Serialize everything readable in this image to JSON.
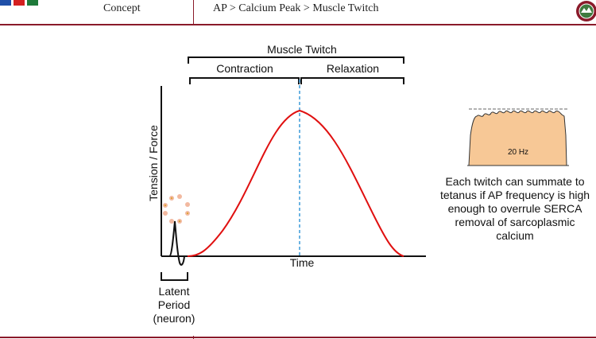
{
  "header": {
    "concept": "Concept",
    "breadcrumb": "AP > Calcium Peak > Muscle Twitch"
  },
  "diagram": {
    "bracket_muscle_twitch": "Muscle Twitch",
    "bracket_contraction": "Contraction",
    "bracket_relaxation": "Relaxation",
    "y_axis_label": "Tension  / Force",
    "x_axis_label": "Time",
    "latent_period_label": [
      "Latent",
      "Period",
      "(neuron)"
    ],
    "curve_color": "#e01010",
    "peak_line_color": "#3a9ad9"
  },
  "inset": {
    "frequency_label": "20 Hz",
    "fill_color": "#f7c896",
    "caption": "Each twitch can summate to tetanus if AP frequency is high enough to overrule SERCA removal of sarcoplasmic calcium"
  },
  "colors": {
    "accent": "#8a1a2a"
  }
}
